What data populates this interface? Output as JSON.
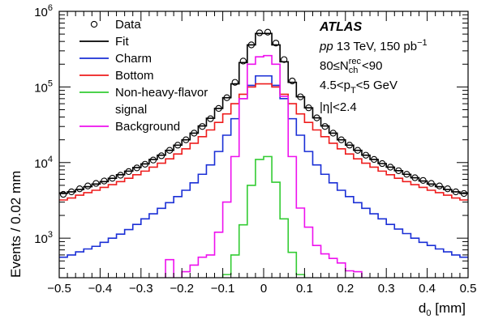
{
  "chart_data": {
    "type": "line",
    "xlabel": "d",
    "xlabel_sub": "0",
    "xlabel_unit": " [mm]",
    "ylabel": "Events / 0.02 mm",
    "xlim": [
      -0.5,
      0.5
    ],
    "ylim": [
      300,
      1000000
    ],
    "yscale": "log",
    "x_ticks": [
      -0.5,
      -0.4,
      -0.3,
      -0.2,
      -0.1,
      0,
      0.1,
      0.2,
      0.3,
      0.4,
      0.5
    ],
    "x_tick_labels": [
      "−0.5",
      "−0.4",
      "−0.3",
      "−0.2",
      "−0.1",
      "0",
      "0.1",
      "0.2",
      "0.3",
      "0.4",
      "0.5"
    ],
    "y_ticks": [
      {
        "base": "10",
        "exp": "3",
        "value": 1000
      },
      {
        "base": "10",
        "exp": "4",
        "value": 10000
      },
      {
        "base": "10",
        "exp": "5",
        "value": 100000
      },
      {
        "base": "10",
        "exp": "6",
        "value": 1000000
      }
    ],
    "legend_position": "top-left",
    "legend": [
      {
        "label": "Data",
        "symbol": "marker",
        "color": "#000000"
      },
      {
        "label": "Fit",
        "symbol": "line",
        "color": "#000000"
      },
      {
        "label": "Charm",
        "symbol": "line",
        "color": "#1a2fd6"
      },
      {
        "label": "Bottom",
        "symbol": "line",
        "color": "#ee1c1c"
      },
      {
        "label": "Non-heavy-flavor",
        "label2": "signal",
        "symbol": "line",
        "color": "#33cc33"
      },
      {
        "label": "Background",
        "symbol": "line",
        "color": "#ee11ee"
      }
    ],
    "annotations": {
      "experiment": "ATLAS",
      "line1_italic": "pp",
      "line1_rest": " 13 TeV, 150 pb",
      "line1_sup": "−1",
      "line2_pre": "80≤N",
      "line2_sup": "rec",
      "line2_sub": "ch",
      "line2_post": "<90",
      "line3_pre": "4.5<p",
      "line3_sub": "T",
      "line3_post": "<5 GeV",
      "line4": "|η|<2.4"
    },
    "series": [
      {
        "name": "Data",
        "color": "#000000",
        "style": "markers",
        "x": [
          -0.49,
          -0.47,
          -0.45,
          -0.43,
          -0.41,
          -0.39,
          -0.37,
          -0.35,
          -0.33,
          -0.31,
          -0.29,
          -0.27,
          -0.25,
          -0.23,
          -0.21,
          -0.19,
          -0.17,
          -0.15,
          -0.13,
          -0.11,
          -0.09,
          -0.07,
          -0.05,
          -0.03,
          -0.01,
          0.01,
          0.03,
          0.05,
          0.07,
          0.09,
          0.11,
          0.13,
          0.15,
          0.17,
          0.19,
          0.21,
          0.23,
          0.25,
          0.27,
          0.29,
          0.31,
          0.33,
          0.35,
          0.37,
          0.39,
          0.41,
          0.43,
          0.45,
          0.47,
          0.49
        ],
        "values": [
          3800,
          4100,
          4500,
          4900,
          5300,
          5700,
          6200,
          6800,
          7600,
          8500,
          9500,
          10800,
          12300,
          14500,
          17000,
          20000,
          24500,
          30000,
          38000,
          52000,
          72000,
          115000,
          220000,
          360000,
          520000,
          530000,
          380000,
          230000,
          120000,
          74000,
          53000,
          39000,
          30000,
          24500,
          20000,
          17000,
          14500,
          12500,
          11000,
          9700,
          8700,
          7800,
          7000,
          6300,
          5800,
          5300,
          4900,
          4500,
          4100,
          3900
        ]
      },
      {
        "name": "Fit",
        "color": "#000000",
        "style": "step",
        "values": [
          3900,
          4100,
          4400,
          4800,
          5200,
          5600,
          6200,
          6900,
          7700,
          8600,
          9600,
          11000,
          12500,
          14500,
          17000,
          20000,
          24500,
          30500,
          38500,
          52000,
          72000,
          110000,
          210000,
          360000,
          510000,
          510000,
          360000,
          215000,
          115000,
          74000,
          53000,
          39000,
          30500,
          24500,
          20000,
          17000,
          14500,
          12500,
          11000,
          9700,
          8700,
          7800,
          7000,
          6300,
          5700,
          5200,
          4800,
          4400,
          4100,
          3900
        ]
      },
      {
        "name": "Charm",
        "color": "#1a2fd6",
        "style": "step",
        "values": [
          560,
          600,
          660,
          720,
          780,
          880,
          1000,
          1130,
          1300,
          1520,
          1800,
          2100,
          2480,
          2950,
          3550,
          4300,
          5400,
          7000,
          9300,
          14000,
          23000,
          38000,
          70000,
          105000,
          140000,
          140000,
          105000,
          70000,
          38000,
          23000,
          14000,
          9300,
          7000,
          5400,
          4300,
          3550,
          2950,
          2480,
          2100,
          1800,
          1520,
          1320,
          1150,
          1000,
          880,
          800,
          720,
          660,
          600,
          560
        ]
      },
      {
        "name": "Bottom",
        "color": "#ee1c1c",
        "style": "step",
        "values": [
          3200,
          3400,
          3700,
          4000,
          4300,
          4700,
          5100,
          5600,
          6200,
          6900,
          7700,
          8700,
          9800,
          11200,
          13000,
          15200,
          18000,
          22000,
          27000,
          34000,
          44000,
          60000,
          80000,
          100000,
          110000,
          110000,
          100000,
          80000,
          60000,
          44000,
          34000,
          27000,
          22000,
          18000,
          15200,
          13000,
          11200,
          9800,
          8700,
          7700,
          6900,
          6200,
          5600,
          5100,
          4700,
          4300,
          4000,
          3700,
          3400,
          3200
        ]
      },
      {
        "name": "Non-heavy-flavor signal",
        "color": "#33cc33",
        "style": "step",
        "values": [
          null,
          null,
          null,
          null,
          null,
          null,
          null,
          null,
          null,
          null,
          null,
          null,
          null,
          null,
          null,
          null,
          null,
          null,
          null,
          null,
          330,
          600,
          1500,
          5000,
          11000,
          12000,
          5500,
          1800,
          650,
          330,
          null,
          null,
          null,
          null,
          null,
          null,
          null,
          null,
          null,
          null,
          null,
          null,
          null,
          null,
          null,
          null,
          null,
          null,
          null,
          null
        ]
      },
      {
        "name": "Background",
        "color": "#ee11ee",
        "style": "step",
        "values": [
          null,
          null,
          null,
          null,
          null,
          null,
          null,
          null,
          null,
          null,
          null,
          null,
          null,
          520,
          null,
          360,
          440,
          560,
          600,
          1200,
          3000,
          12000,
          70000,
          200000,
          250000,
          260000,
          200000,
          75000,
          12000,
          2500,
          1400,
          800,
          620,
          540,
          470,
          370,
          360,
          null,
          null,
          null,
          null,
          null,
          null,
          null,
          null,
          null,
          null,
          null,
          null,
          null
        ]
      }
    ]
  }
}
